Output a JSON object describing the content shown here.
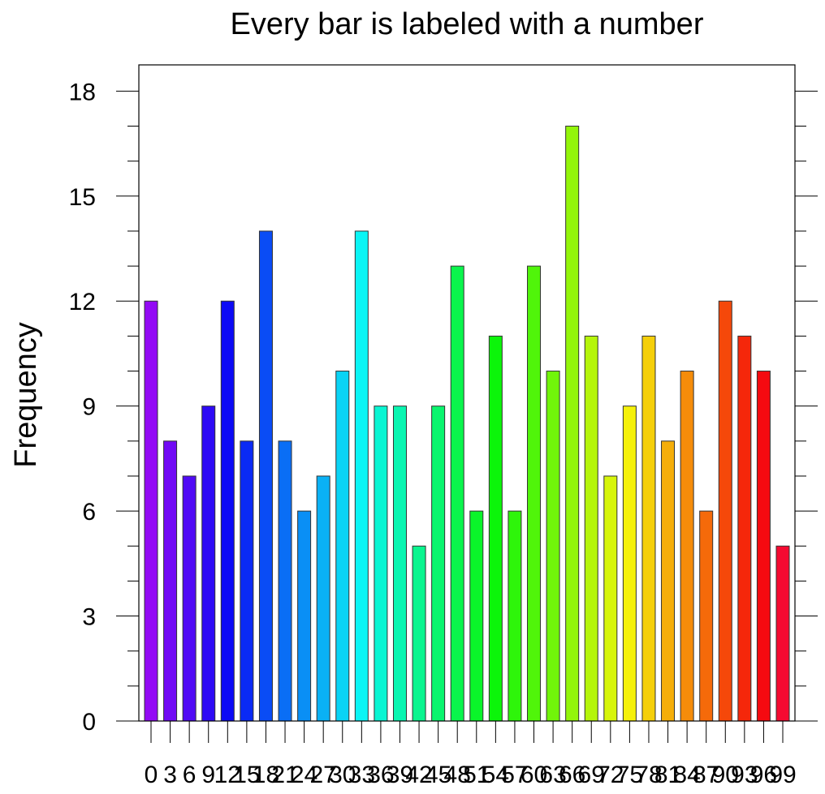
{
  "chart_data": {
    "type": "bar",
    "title": "Every bar is labeled with a number",
    "xlabel": "",
    "ylabel": "Frequency",
    "ylim": [
      0,
      18.75
    ],
    "yticks": [
      0,
      3,
      6,
      9,
      12,
      15,
      18
    ],
    "categories": [
      "0",
      "3",
      "6",
      "9",
      "12",
      "15",
      "18",
      "21",
      "24",
      "27",
      "30",
      "33",
      "36",
      "39",
      "42",
      "45",
      "48",
      "51",
      "54",
      "57",
      "60",
      "63",
      "66",
      "69",
      "72",
      "75",
      "78",
      "81",
      "84",
      "87",
      "90",
      "93",
      "96",
      "99"
    ],
    "values": [
      12,
      8,
      7,
      9,
      12,
      8,
      14,
      8,
      6,
      7,
      10,
      14,
      9,
      9,
      5,
      9,
      13,
      6,
      11,
      6,
      13,
      10,
      17,
      11,
      7,
      9,
      11,
      8,
      10,
      6,
      12,
      11,
      10,
      5
    ],
    "colormap": "rainbow purple-to-red",
    "grid": false,
    "legend": "none"
  }
}
